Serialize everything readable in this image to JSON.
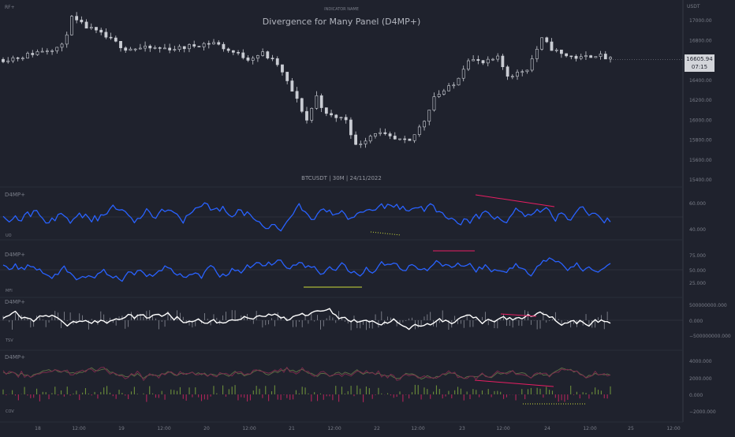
{
  "header": {
    "top_left": "RF+",
    "indicator_name": "INDICATOR NAME",
    "title": "Divergence for Many Panel (D4MP+)",
    "symbol_line": "BTCUSDT | 30M | 24/11/2022"
  },
  "price_scale": {
    "unit": "USDT",
    "ticks": [
      "17000.00",
      "16800.00",
      "16600.00",
      "16400.00",
      "16200.00",
      "16000.00",
      "15800.00",
      "15600.00",
      "15400.00"
    ],
    "last_price": "16605.94",
    "countdown": "07:15"
  },
  "time_axis": {
    "labels": [
      "18",
      "12:00",
      "19",
      "12:00",
      "20",
      "12:00",
      "21",
      "12:00",
      "22",
      "12:00",
      "23",
      "12:00",
      "24",
      "12:00",
      "25",
      "12:00"
    ]
  },
  "colors": {
    "background": "#1f222d",
    "blue_line": "#2962ff",
    "white_line": "#ffffff",
    "bearish_div": "#e91e63",
    "bullish_div": "#cddc39",
    "oscillator_green": "#6b8e3a",
    "oscillator_red": "#b0245a"
  },
  "panels": [
    {
      "tag": "D4MP+",
      "name": "UO",
      "ticks": [
        "60.000",
        "40.000"
      ]
    },
    {
      "tag": "D4MP+",
      "name": "MFI",
      "ticks": [
        "75.000",
        "50.000",
        "25.000"
      ]
    },
    {
      "tag": "D4MP+",
      "name": "TSV",
      "ticks": [
        "500000000.000",
        "0.000",
        "−500000000.000"
      ]
    },
    {
      "tag": "D4MP+",
      "name": "COV",
      "ticks": [
        "4000.000",
        "2000.000",
        "0.000",
        "−2000.000"
      ]
    }
  ],
  "chart_data": {
    "type": "line",
    "symbol": "BTCUSDT",
    "interval": "30M",
    "date": "24/11/2022",
    "price_ylim": [
      15400,
      17100
    ],
    "price_path": [
      [
        0,
        16610
      ],
      [
        4,
        16640
      ],
      [
        8,
        16700
      ],
      [
        12,
        16740
      ],
      [
        14,
        17020
      ],
      [
        16,
        16960
      ],
      [
        20,
        16860
      ],
      [
        25,
        16720
      ],
      [
        30,
        16720
      ],
      [
        36,
        16720
      ],
      [
        40,
        16760
      ],
      [
        43,
        16780
      ],
      [
        46,
        16700
      ],
      [
        50,
        16620
      ],
      [
        53,
        16670
      ],
      [
        56,
        16560
      ],
      [
        60,
        16200
      ],
      [
        62,
        16000
      ],
      [
        64,
        16240
      ],
      [
        66,
        16050
      ],
      [
        70,
        16010
      ],
      [
        72,
        15740
      ],
      [
        76,
        15880
      ],
      [
        80,
        15800
      ],
      [
        83,
        15780
      ],
      [
        86,
        16000
      ],
      [
        88,
        16240
      ],
      [
        92,
        16350
      ],
      [
        95,
        16620
      ],
      [
        98,
        16570
      ],
      [
        101,
        16620
      ],
      [
        103,
        16450
      ],
      [
        105,
        16470
      ],
      [
        107,
        16520
      ],
      [
        110,
        16810
      ],
      [
        112,
        16720
      ],
      [
        114,
        16660
      ],
      [
        118,
        16620
      ],
      [
        121,
        16660
      ],
      [
        124,
        16606
      ]
    ]
  }
}
